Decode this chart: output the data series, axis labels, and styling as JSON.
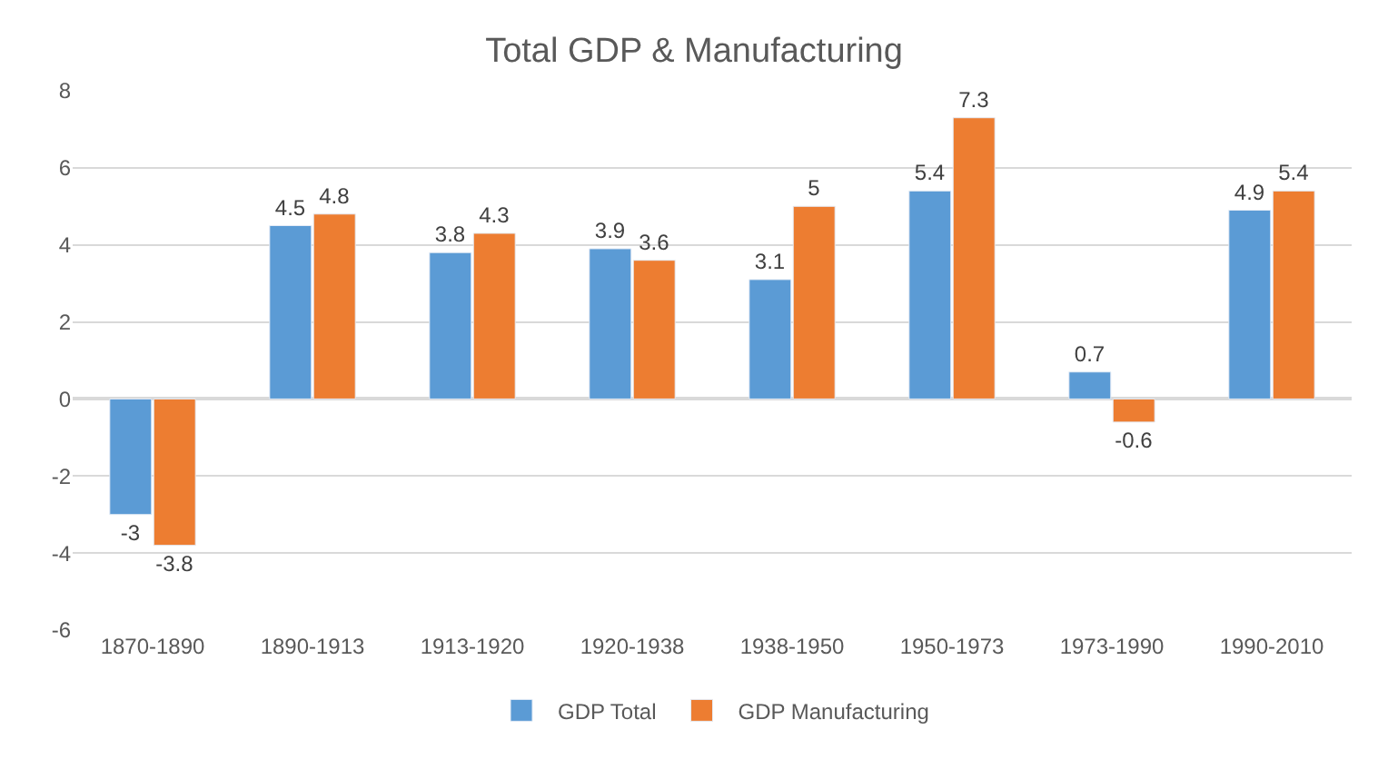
{
  "chart_data": {
    "type": "bar",
    "title": "Total GDP & Manufacturing",
    "categories": [
      "1870-1890",
      "1890-1913",
      "1913-1920",
      "1920-1938",
      "1938-1950",
      "1950-1973",
      "1973-1990",
      "1990-2010"
    ],
    "series": [
      {
        "name": "GDP Total",
        "color": "#5b9bd5",
        "values": [
          -3,
          4.5,
          3.8,
          3.9,
          3.1,
          5.4,
          0.7,
          4.9
        ]
      },
      {
        "name": "GDP Manufacturing",
        "color": "#ed7d31",
        "values": [
          -3.8,
          4.8,
          4.3,
          3.6,
          5,
          7.3,
          -0.6,
          5.4
        ]
      }
    ],
    "ylim": [
      -6,
      8
    ],
    "yticks": [
      -6,
      -4,
      -2,
      0,
      2,
      4,
      6,
      8
    ],
    "grid": "y",
    "legend": "bottom",
    "data_labels": true
  }
}
